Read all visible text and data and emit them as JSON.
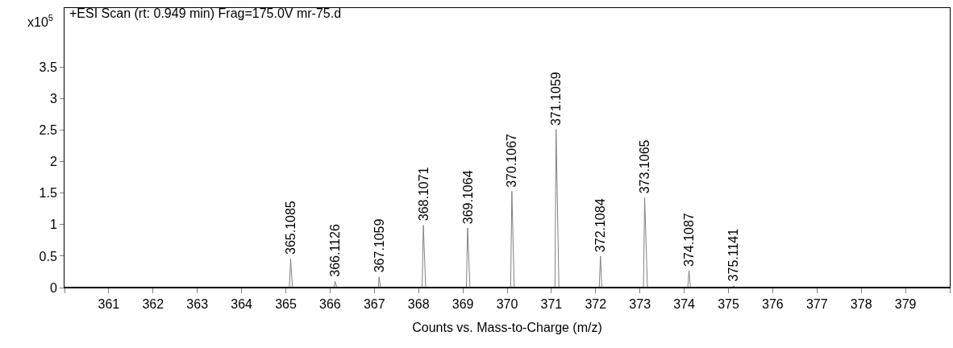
{
  "chart_data": {
    "type": "line",
    "title": "+ESI Scan (rt: 0.949 min) Frag=175.0V mr-75.d",
    "xlabel": "Counts vs. Mass-to-Charge (m/z)",
    "x": [
      360,
      365.08,
      365.1085,
      365.15,
      366.09,
      366.1126,
      366.15,
      367.09,
      367.1059,
      367.14,
      368.08,
      368.1071,
      368.16,
      369.08,
      369.1064,
      369.16,
      370.08,
      370.1067,
      370.16,
      371.08,
      371.1059,
      371.17,
      372.08,
      372.1084,
      372.14,
      373.08,
      373.1065,
      373.17,
      374.08,
      374.1087,
      374.14,
      375.08,
      375.1141,
      375.15,
      380
    ],
    "series": [
      {
        "color": "#808080",
        "values": [
          0,
          0,
          0.46,
          0,
          0,
          0.1,
          0,
          0,
          0.17,
          0,
          0,
          0.99,
          0,
          0,
          0.95,
          0,
          0,
          1.53,
          0,
          0,
          2.51,
          0,
          0,
          0.5,
          0,
          0,
          1.43,
          0,
          0,
          0.27,
          0,
          0,
          0.03,
          0,
          0
        ]
      }
    ],
    "annotations": [
      "x10$^{5}$",
      {
        "text": "365.1085",
        "x": 365.1085,
        "y": 0.46
      },
      {
        "text": "366.1126",
        "x": 366.1126,
        "y": 0.1
      },
      {
        "text": "367.1059",
        "x": 367.1059,
        "y": 0.17
      },
      {
        "text": "368.1071",
        "x": 368.1071,
        "y": 0.99
      },
      {
        "text": "369.1064",
        "x": 369.1064,
        "y": 0.95
      },
      {
        "text": "370.1067",
        "x": 370.1067,
        "y": 1.53
      },
      {
        "text": "371.1059",
        "x": 371.1059,
        "y": 2.51
      },
      {
        "text": "372.1084",
        "x": 372.1084,
        "y": 0.5
      },
      {
        "text": "373.1065",
        "x": 373.1065,
        "y": 1.43
      },
      {
        "text": "374.1087",
        "x": 374.1087,
        "y": 0.27
      },
      {
        "text": "375.1141",
        "x": 375.1141,
        "y": 0.03
      }
    ],
    "xlim": [
      360,
      380
    ],
    "xticks": [
      {
        "value": 360,
        "label": null
      },
      361,
      362,
      363,
      364,
      365,
      366,
      367,
      368,
      369,
      370,
      371,
      372,
      373,
      374,
      375,
      376,
      377,
      378,
      379,
      {
        "value": 380,
        "label": null
      }
    ],
    "ylim": [
      0,
      4.44
    ],
    "yticks": [
      0,
      0.5,
      1,
      1.5,
      2,
      2.5,
      3,
      3.5
    ],
    "marker": "none",
    "line_style": "solid"
  }
}
